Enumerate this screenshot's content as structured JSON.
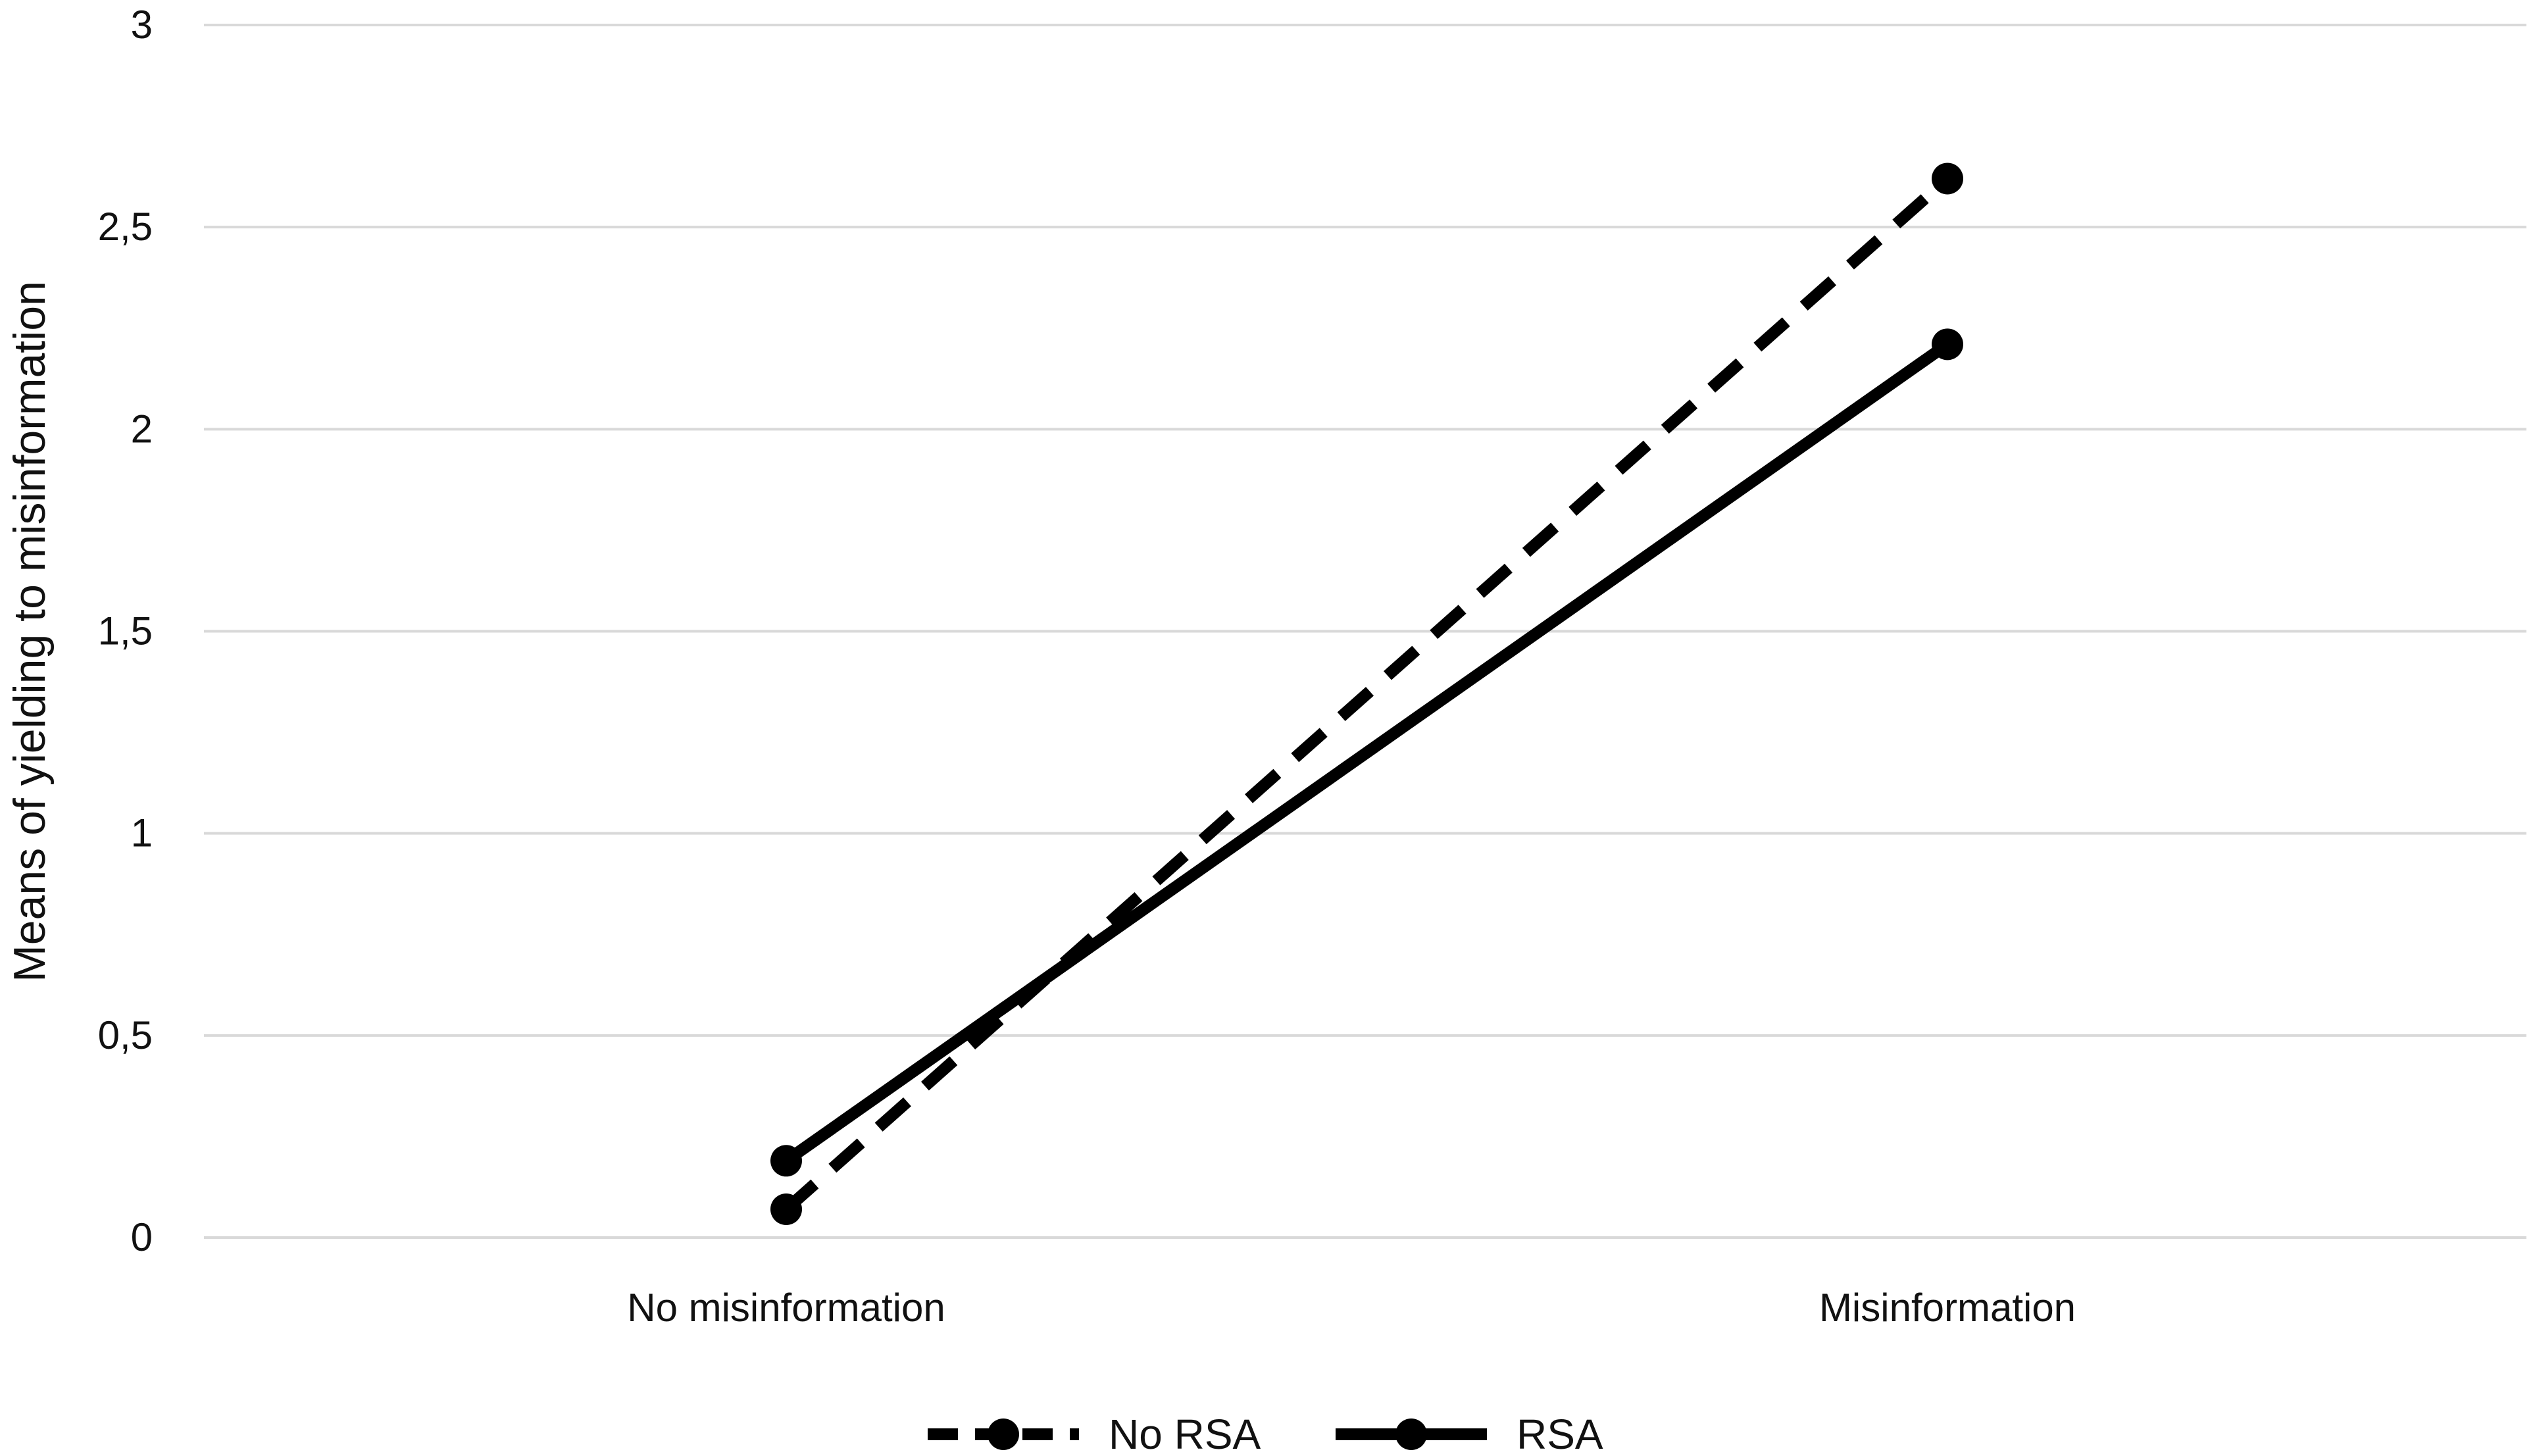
{
  "chart_data": {
    "type": "line",
    "categories": [
      "No misinformation",
      "Misinformation"
    ],
    "ylabel": "Means of yielding to misinformation",
    "xlabel": "",
    "title": "",
    "ylim": [
      0,
      3
    ],
    "yticks": [
      "0",
      "0,5",
      "1",
      "1,5",
      "2",
      "2,5",
      "3"
    ],
    "ytick_values": [
      0,
      0.5,
      1,
      1.5,
      2,
      2.5,
      3
    ],
    "grid": true,
    "legend_position": "bottom",
    "series": [
      {
        "name": "No RSA",
        "values": [
          0.07,
          2.62
        ],
        "style": "dashed",
        "color": "#000000"
      },
      {
        "name": "RSA",
        "values": [
          0.19,
          2.21
        ],
        "style": "solid",
        "color": "#000000"
      }
    ]
  }
}
